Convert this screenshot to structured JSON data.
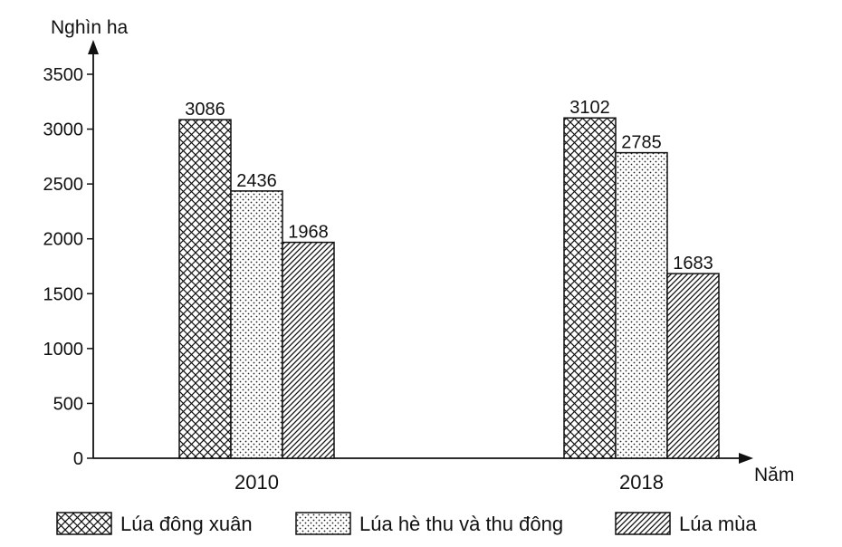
{
  "chart_data": {
    "type": "bar",
    "categories": [
      "2010",
      "2018"
    ],
    "series": [
      {
        "name": "Lúa đông xuân",
        "values": [
          3086,
          3102
        ],
        "pattern": "crosshatch"
      },
      {
        "name": "Lúa hè thu và thu đông",
        "values": [
          2436,
          2785
        ],
        "pattern": "dots"
      },
      {
        "name": "Lúa mùa",
        "values": [
          1968,
          1683
        ],
        "pattern": "diagonal"
      }
    ],
    "ylabel": "Nghìn ha",
    "xlabel": "Năm",
    "ylim": [
      0,
      3500
    ],
    "yticks": [
      0,
      500,
      1000,
      1500,
      2000,
      2500,
      3000,
      3500
    ],
    "grid": false,
    "legend_position": "bottom",
    "colors": {
      "ink": "#111111",
      "background": "#ffffff"
    }
  }
}
